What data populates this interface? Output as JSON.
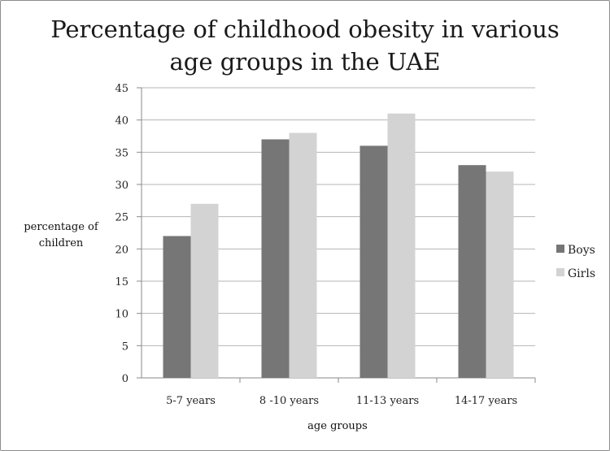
{
  "chart_data": {
    "type": "bar",
    "title_lines": [
      "Percentage of childhood obesity in various",
      "age groups in the UAE"
    ],
    "xlabel": "age groups",
    "ylabel_lines": [
      "percentage of",
      "children"
    ],
    "categories": [
      "5-7 years",
      "8 -10 years",
      "11-13 years",
      "14-17 years"
    ],
    "series": [
      {
        "name": "Boys",
        "color": "#767676",
        "values": [
          22,
          37,
          36,
          33
        ]
      },
      {
        "name": "Girls",
        "color": "#d3d3d3",
        "values": [
          27,
          38,
          41,
          32
        ]
      }
    ],
    "ylim": [
      0,
      45
    ],
    "yticks": [
      0,
      5,
      10,
      15,
      20,
      25,
      30,
      35,
      40,
      45
    ],
    "grid": true,
    "legend_position": "right",
    "grid_color": "#b5b5b5",
    "axis_color": "#8a8a8a"
  }
}
